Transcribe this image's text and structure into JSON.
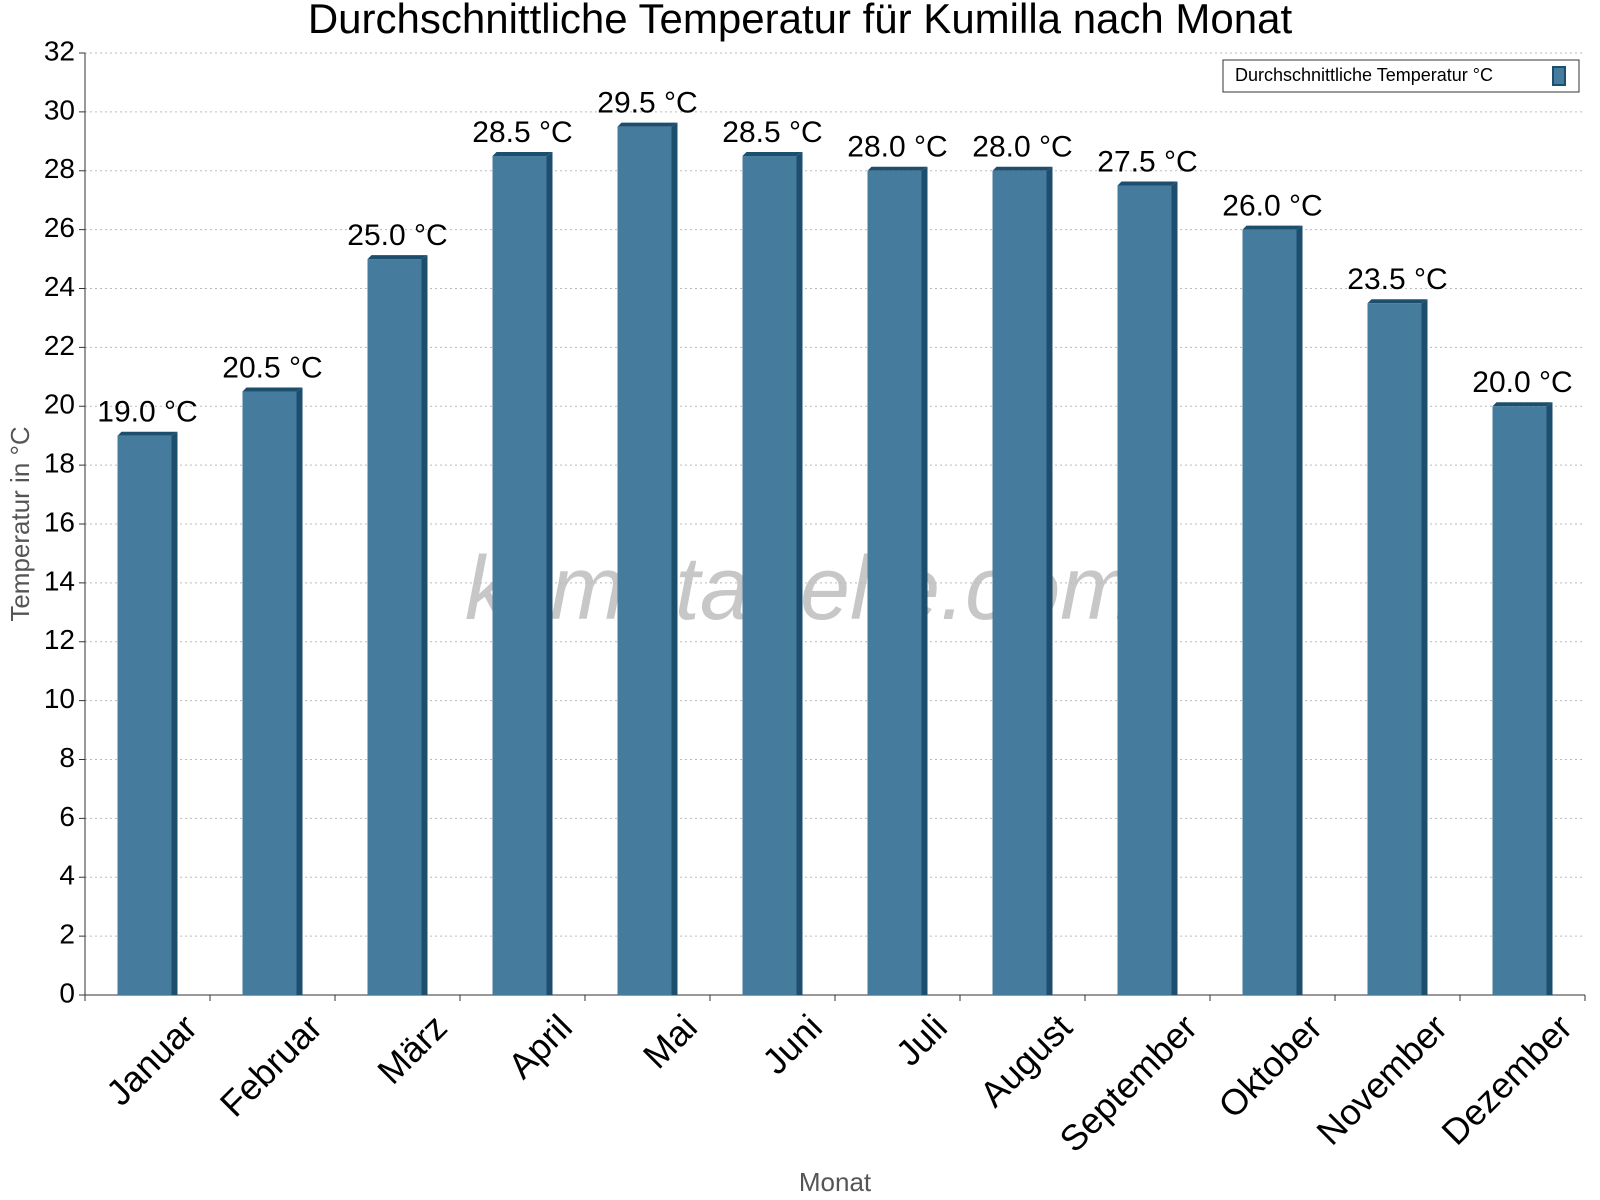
{
  "chart_data": {
    "type": "bar",
    "title": "Durchschnittliche Temperatur für Kumilla nach Monat",
    "x_label": "Monat",
    "y_label": "Temperatur in °C",
    "watermark": "klimatabelle.com",
    "categories": [
      "Januar",
      "Februar",
      "März",
      "April",
      "Mai",
      "Juni",
      "Juli",
      "August",
      "September",
      "Oktober",
      "November",
      "Dezember"
    ],
    "series": [
      {
        "name": "Durchschnittliche Temperatur °C",
        "color": "#457b9d",
        "values": [
          19.0,
          20.5,
          25.0,
          28.5,
          29.5,
          28.5,
          28.0,
          28.0,
          27.5,
          26.0,
          23.5,
          20.0
        ],
        "value_labels": [
          "19.0 °C",
          "20.5 °C",
          "25.0 °C",
          "28.5 °C",
          "29.5 °C",
          "28.5 °C",
          "28.0 °C",
          "28.0 °C",
          "27.5 °C",
          "26.0 °C",
          "23.5 °C",
          "20.0 °C"
        ]
      }
    ],
    "ylim": [
      0,
      32
    ],
    "yticks": [
      0,
      2,
      4,
      6,
      8,
      10,
      12,
      14,
      16,
      18,
      20,
      22,
      24,
      26,
      28,
      30,
      32
    ],
    "grid": true,
    "legend": "top-right"
  }
}
